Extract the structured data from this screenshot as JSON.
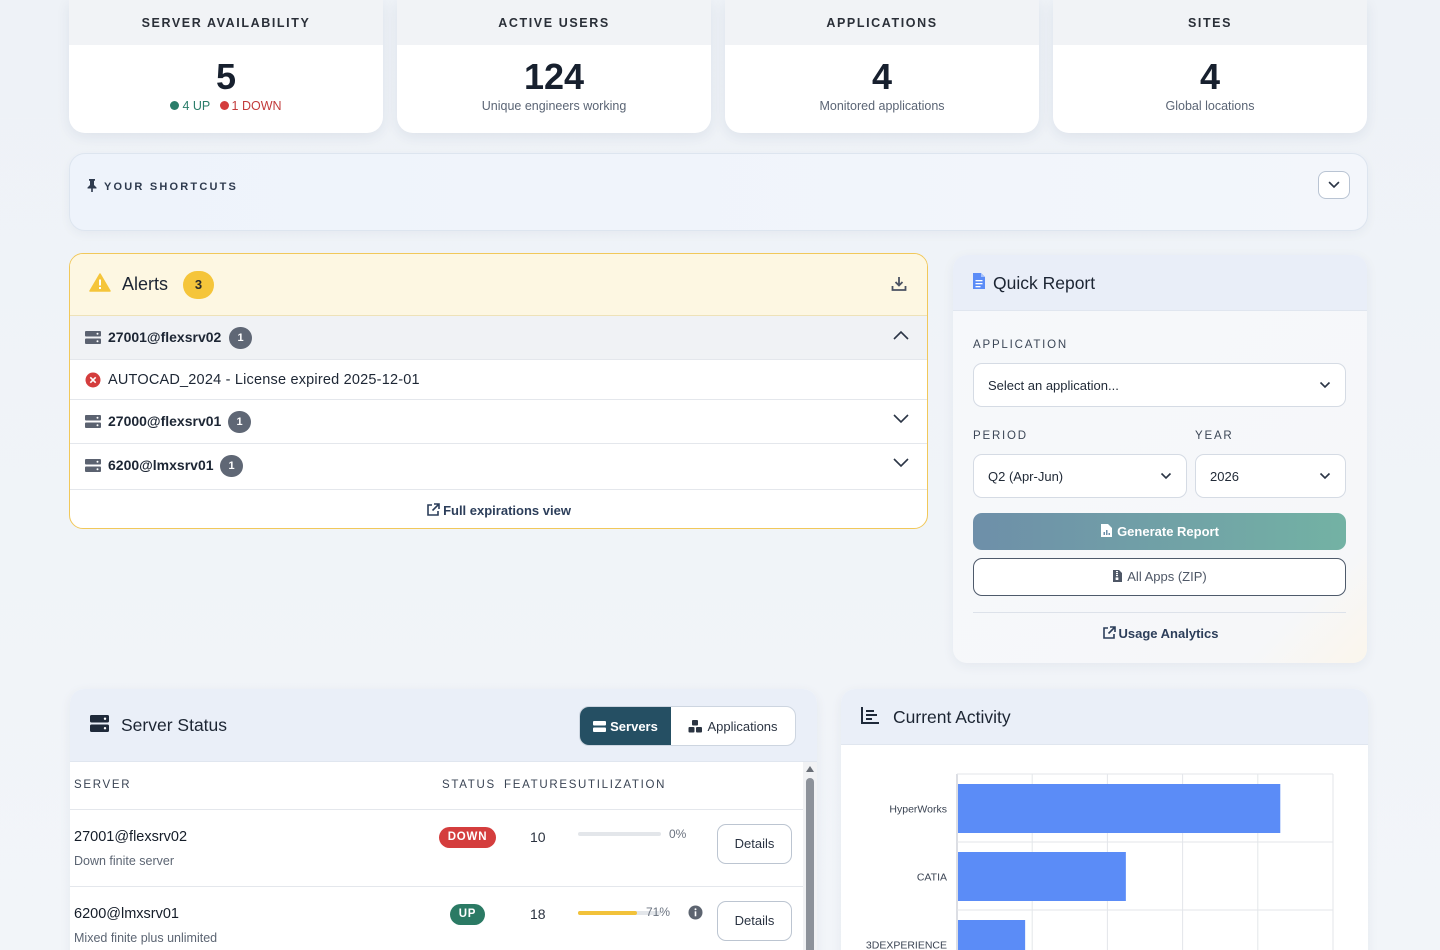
{
  "stats": [
    {
      "label": "SERVER AVAILABILITY",
      "value": "5",
      "up": "4 UP",
      "down": "1 DOWN"
    },
    {
      "label": "ACTIVE USERS",
      "value": "124",
      "sub": "Unique engineers working"
    },
    {
      "label": "APPLICATIONS",
      "value": "4",
      "sub": "Monitored applications"
    },
    {
      "label": "SITES",
      "value": "4",
      "sub": "Global locations"
    }
  ],
  "shortcuts": {
    "title": "YOUR SHORTCUTS"
  },
  "alerts": {
    "title": "Alerts",
    "count": "3",
    "groups": [
      {
        "server": "27001@flexsrv02",
        "count": "1",
        "expanded": true,
        "items": [
          {
            "text": "AUTOCAD_2024 - License expired 2025-12-01"
          }
        ]
      },
      {
        "server": "27000@flexsrv01",
        "count": "1",
        "expanded": false
      },
      {
        "server": "6200@lmxsrv01",
        "count": "1",
        "expanded": false
      }
    ],
    "footer_link": "Full expirations view"
  },
  "quick_report": {
    "title": "Quick Report",
    "application_label": "APPLICATION",
    "application_value": "Select an application...",
    "period_label": "PERIOD",
    "period_value": "Q2 (Apr-Jun)",
    "year_label": "YEAR",
    "year_value": "2026",
    "generate_label": "Generate Report",
    "zip_label": "All Apps (ZIP)",
    "analytics_link": "Usage Analytics"
  },
  "server_status": {
    "title": "Server Status",
    "tabs": [
      {
        "label": "Servers",
        "active": true
      },
      {
        "label": "Applications",
        "active": false
      }
    ],
    "columns": [
      "SERVER",
      "STATUS",
      "FEATURES",
      "UTILIZATION"
    ],
    "rows": [
      {
        "name": "27001@flexsrv02",
        "desc": "Down finite server",
        "status": "DOWN",
        "features": "10",
        "utilization": 0,
        "utilization_text": "0%",
        "details": "Details"
      },
      {
        "name": "6200@lmxsrv01",
        "desc": "Mixed finite plus unlimited",
        "status": "UP",
        "features": "18",
        "utilization": 71,
        "utilization_text": "71%",
        "details": "Details"
      }
    ]
  },
  "current_activity": {
    "title": "Current Activity",
    "chart_data": {
      "type": "bar",
      "orientation": "horizontal",
      "categories": [
        "HyperWorks",
        "CATIA",
        "3DEXPERIENCE"
      ],
      "values": [
        48,
        25,
        10
      ],
      "xlim": [
        0,
        56
      ],
      "grid": true,
      "bar_color": "#5b8cf7"
    }
  },
  "colors": {
    "up": "#2a7d6a",
    "down": "#c23b3b",
    "accent": "#254f63",
    "warning": "#f5c53a"
  }
}
